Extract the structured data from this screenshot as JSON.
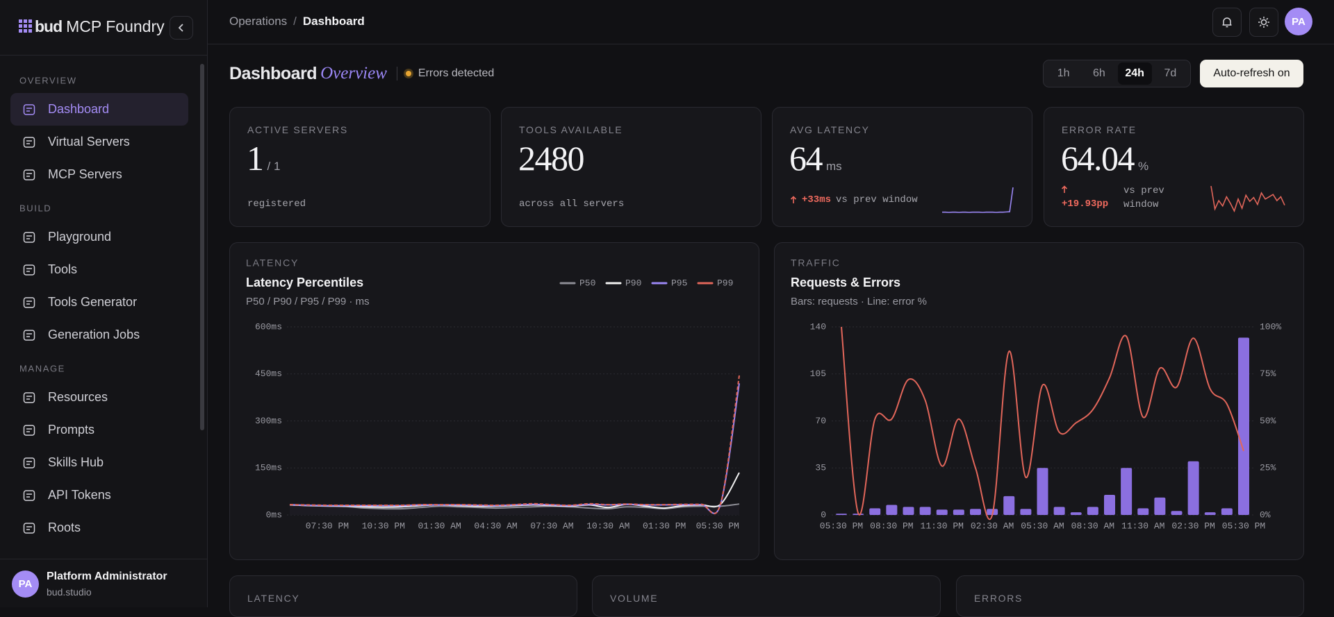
{
  "sidebar": {
    "brand": "bud",
    "product": "MCP Foundry",
    "sections": [
      {
        "title": "OVERVIEW",
        "items": [
          "Dashboard",
          "Virtual Servers",
          "MCP Servers"
        ]
      },
      {
        "title": "BUILD",
        "items": [
          "Playground",
          "Tools",
          "Tools Generator",
          "Generation Jobs"
        ]
      },
      {
        "title": "MANAGE",
        "items": [
          "Resources",
          "Prompts",
          "Skills Hub",
          "API Tokens",
          "Roots"
        ]
      }
    ],
    "user": {
      "initials": "PA",
      "name": "Platform Administrator",
      "org": "bud.studio"
    }
  },
  "header": {
    "breadcrumb": [
      "Operations",
      "Dashboard"
    ],
    "separator": "/",
    "avatar": "PA"
  },
  "page": {
    "title": "Dashboard",
    "subtitle": "Overview",
    "status": "Errors detected",
    "ranges": [
      "1h",
      "6h",
      "24h",
      "7d"
    ],
    "refresh": "Auto-refresh on"
  },
  "kpis": [
    {
      "label": "ACTIVE SERVERS",
      "value": "1",
      "suffix": "/ 1",
      "note": "registered"
    },
    {
      "label": "TOOLS AVAILABLE",
      "value": "2480",
      "note": "across all servers"
    },
    {
      "label": "AVG LATENCY",
      "value": "64",
      "unit": "ms",
      "delta": "+33ms",
      "note": "vs prev window",
      "sparkline": [
        31,
        31,
        30,
        31,
        31,
        30,
        31,
        31,
        30,
        31,
        31,
        31,
        30,
        31,
        31,
        31,
        30,
        31,
        31,
        32,
        33,
        145
      ]
    },
    {
      "label": "ERROR RATE",
      "value": "64.04",
      "unit": "%",
      "delta": "+19.93pp",
      "note": "vs prev window",
      "sparkline": [
        100,
        40,
        62,
        48,
        72,
        55,
        35,
        66,
        42,
        76,
        60,
        70,
        52,
        82,
        66,
        72,
        78,
        62,
        72,
        50
      ]
    }
  ],
  "chart_data": [
    {
      "type": "line",
      "section": "LATENCY",
      "title": "Latency Percentiles",
      "subtitle": "P50 / P90 / P95 / P99 · ms",
      "categories": [
        null,
        null,
        "07:30 PM",
        null,
        null,
        "10:30 PM",
        null,
        null,
        "01:30 AM",
        null,
        null,
        "04:30 AM",
        null,
        null,
        "07:30 AM",
        null,
        null,
        "10:30 AM",
        null,
        null,
        "01:30 PM",
        null,
        null,
        null,
        "05:30 PM"
      ],
      "series": [
        {
          "name": "P50",
          "color": "#8d8d95",
          "values": [
            32,
            30,
            28,
            27,
            22,
            20,
            20,
            24,
            28,
            26,
            24,
            22,
            24,
            26,
            28,
            26,
            22,
            20,
            26,
            24,
            20,
            26,
            28,
            28,
            35
          ]
        },
        {
          "name": "P90",
          "color": "#f2f2f2",
          "values": [
            32,
            30,
            29,
            28,
            26,
            25,
            26,
            30,
            32,
            30,
            28,
            28,
            30,
            32,
            30,
            28,
            32,
            24,
            34,
            28,
            22,
            30,
            32,
            34,
            135
          ]
        },
        {
          "name": "P95",
          "color": "#9b87f5",
          "values": [
            33,
            31,
            30,
            30,
            30,
            30,
            30,
            32,
            32,
            32,
            31,
            30,
            32,
            34,
            32,
            30,
            34,
            32,
            34,
            32,
            32,
            33,
            33,
            34,
            420
          ]
        },
        {
          "name": "P99",
          "color": "#e2665a",
          "dashed": true,
          "values": [
            33,
            32,
            31,
            31,
            31,
            31,
            31,
            33,
            33,
            33,
            32,
            31,
            33,
            36,
            33,
            31,
            36,
            33,
            35,
            33,
            33,
            34,
            34,
            35,
            445
          ]
        }
      ],
      "ylim": [
        0,
        600
      ],
      "yticks": [
        {
          "value": 0,
          "label": "0ms"
        },
        {
          "value": 150,
          "label": "150ms"
        },
        {
          "value": 300,
          "label": "300ms"
        },
        {
          "value": 450,
          "label": "450ms"
        },
        {
          "value": 600,
          "label": "600ms"
        }
      ],
      "grid": true,
      "legend": "top-right"
    },
    {
      "type": "combo",
      "section": "TRAFFIC",
      "title": "Requests & Errors",
      "subtitle": "Bars: requests · Line: error %",
      "categories": [
        "05:30 PM",
        null,
        null,
        "08:30 PM",
        null,
        null,
        "11:30 PM",
        null,
        null,
        "02:30 AM",
        null,
        null,
        "05:30 AM",
        null,
        null,
        "08:30 AM",
        null,
        null,
        "11:30 AM",
        null,
        null,
        "02:30 PM",
        null,
        null,
        "05:30 PM"
      ],
      "series": [
        {
          "type": "bar",
          "color": "#8b6fe0",
          "values": [
            1,
            1,
            5,
            7.5,
            6,
            6,
            4,
            4,
            4.5,
            4.5,
            14,
            4.5,
            35,
            6,
            2,
            6,
            15,
            35,
            5,
            13,
            3,
            40,
            2,
            5,
            132
          ]
        },
        {
          "type": "line",
          "color": "#e2665a",
          "axis": "y2",
          "values": [
            100,
            1,
            51,
            51,
            72,
            61,
            26,
            51,
            25,
            0,
            87,
            20,
            69,
            44,
            49,
            56,
            73,
            95,
            52,
            78,
            68,
            94,
            67,
            59,
            34
          ]
        }
      ],
      "ylim": [
        0,
        140
      ],
      "yticks": [
        0,
        35,
        70,
        105,
        140
      ],
      "y2lim": [
        0,
        100
      ],
      "y2ticks": [
        {
          "value": 0,
          "label": "0%"
        },
        {
          "value": 25,
          "label": "25%"
        },
        {
          "value": 50,
          "label": "50%"
        },
        {
          "value": 75,
          "label": "75%"
        },
        {
          "value": 100,
          "label": "100%"
        }
      ],
      "grid": true
    }
  ],
  "bottom_cards": [
    "LATENCY",
    "VOLUME",
    "ERRORS"
  ]
}
